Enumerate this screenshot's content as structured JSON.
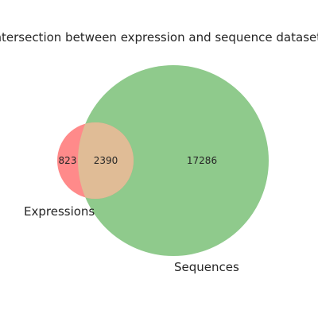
{
  "title": "Intersection between expression and sequence datasets",
  "sets": [
    {
      "name": "Expressions",
      "color": "#ff8a8a"
    },
    {
      "name": "Sequences",
      "color": "#8fca8c"
    }
  ],
  "overlap_color": "#e0bc96",
  "regions": {
    "only_a": 823,
    "intersection": 2390,
    "only_b": 17286
  }
}
